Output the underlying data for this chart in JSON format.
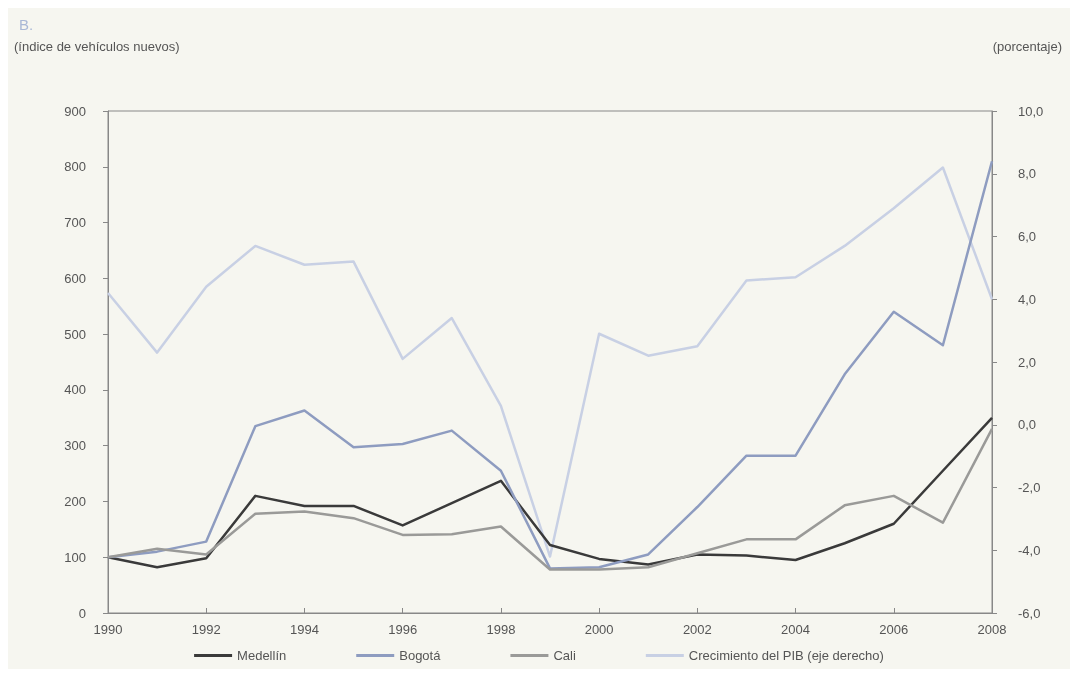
{
  "chart_data": {
    "type": "line",
    "title": "B.",
    "ylabel": "(índice de vehículos nuevos)",
    "y2label": "(porcentaje)",
    "x": [
      1990,
      1991,
      1992,
      1993,
      1994,
      1995,
      1996,
      1997,
      1998,
      1999,
      2000,
      2001,
      2002,
      2003,
      2004,
      2005,
      2006,
      2007,
      2008
    ],
    "xlim": [
      1990,
      2008
    ],
    "xticks": [
      1990,
      1992,
      1994,
      1996,
      1998,
      2000,
      2002,
      2004,
      2006,
      2008
    ],
    "ylim": [
      0,
      900
    ],
    "yticks": [
      0,
      100,
      200,
      300,
      400,
      500,
      600,
      700,
      800,
      900
    ],
    "y2lim": [
      -6,
      10
    ],
    "y2ticks": [
      {
        "value": -6,
        "label": "-6,0"
      },
      {
        "value": -4,
        "label": "-4,0"
      },
      {
        "value": -2,
        "label": "-2,0"
      },
      {
        "value": 0,
        "label": "0,0"
      },
      {
        "value": 2,
        "label": "2,0"
      },
      {
        "value": 4,
        "label": "4,0"
      },
      {
        "value": 6,
        "label": "6,0"
      },
      {
        "value": 8,
        "label": "8,0"
      },
      {
        "value": 10,
        "label": "10,0"
      }
    ],
    "series": [
      {
        "name": "Medellín",
        "color": "#3a3a3a",
        "values": [
          100,
          82,
          98,
          210,
          192,
          192,
          157,
          197,
          237,
          122,
          97,
          87,
          105,
          103,
          95,
          125,
          160,
          255,
          350
        ]
      },
      {
        "name": "Bogotá",
        "color": "#8e9cc0",
        "values": [
          100,
          110,
          128,
          335,
          363,
          297,
          303,
          327,
          255,
          80,
          82,
          105,
          190,
          282,
          282,
          428,
          540,
          480,
          810
        ]
      },
      {
        "name": "Cali",
        "color": "#9a9a98",
        "values": [
          100,
          115,
          105,
          178,
          182,
          170,
          140,
          141,
          155,
          78,
          78,
          82,
          107,
          132,
          132,
          193,
          210,
          162,
          330
        ]
      },
      {
        "name": "Crecimiento del PIB (eje derecho)",
        "color": "#c8d0e4",
        "axis": "y2",
        "values": [
          4.2,
          2.3,
          4.4,
          5.7,
          5.1,
          5.2,
          2.1,
          3.4,
          0.6,
          -4.2,
          2.9,
          2.2,
          2.5,
          4.6,
          4.7,
          5.7,
          6.9,
          8.2,
          4.0
        ]
      }
    ],
    "grid": false,
    "legend": "bottom",
    "marker": "none",
    "line_style": "solid"
  }
}
